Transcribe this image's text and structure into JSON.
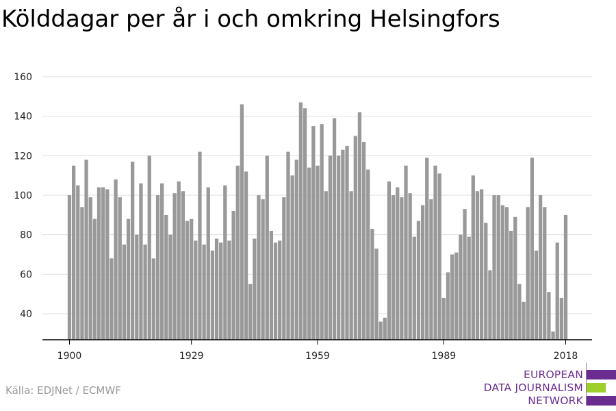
{
  "title": "Kölddagar per år i och omkring Helsingfors",
  "source": "Källa: EDJNet / ECMWF",
  "logo": {
    "lines": [
      "EUROPEAN",
      "DATA JOURNALISM",
      "NETWORK"
    ],
    "colors": {
      "text": "#6b2c8f",
      "bar_purple": "#6b2c8f",
      "bar_green": "#9ed02b"
    }
  },
  "chart_data": {
    "type": "bar",
    "title": "Kölddagar per år i och omkring Helsingfors",
    "xlabel": "",
    "ylabel": "",
    "x_start_year": 1900,
    "x_end_year": 2018,
    "xticks": [
      1900,
      1929,
      1959,
      1989,
      2018
    ],
    "yticks": [
      40,
      60,
      80,
      100,
      120,
      140,
      160
    ],
    "ylim": [
      27,
      163
    ],
    "grid": true,
    "bar_color": "#999999",
    "years": [
      1900,
      1901,
      1902,
      1903,
      1904,
      1905,
      1906,
      1907,
      1908,
      1909,
      1910,
      1911,
      1912,
      1913,
      1914,
      1915,
      1916,
      1917,
      1918,
      1919,
      1920,
      1921,
      1922,
      1923,
      1924,
      1925,
      1926,
      1927,
      1928,
      1929,
      1930,
      1931,
      1932,
      1933,
      1934,
      1935,
      1936,
      1937,
      1938,
      1939,
      1940,
      1941,
      1942,
      1943,
      1944,
      1945,
      1946,
      1947,
      1948,
      1949,
      1950,
      1951,
      1952,
      1953,
      1954,
      1955,
      1956,
      1957,
      1958,
      1959,
      1960,
      1961,
      1962,
      1963,
      1964,
      1965,
      1966,
      1967,
      1968,
      1969,
      1970,
      1971,
      1972,
      1973,
      1974,
      1975,
      1976,
      1977,
      1978,
      1979,
      1980,
      1981,
      1982,
      1983,
      1984,
      1985,
      1986,
      1987,
      1988,
      1989,
      1990,
      1991,
      1992,
      1993,
      1994,
      1995,
      1996,
      1997,
      1998,
      1999,
      2000,
      2001,
      2002,
      2003,
      2004,
      2005,
      2006,
      2007,
      2008,
      2009,
      2010,
      2011,
      2012,
      2013,
      2014,
      2015,
      2016,
      2017,
      2018
    ],
    "values": [
      100,
      115,
      105,
      94,
      118,
      99,
      88,
      104,
      104,
      103,
      68,
      108,
      99,
      75,
      88,
      117,
      80,
      106,
      75,
      120,
      68,
      100,
      106,
      90,
      80,
      101,
      107,
      102,
      87,
      88,
      77,
      122,
      75,
      104,
      72,
      78,
      76,
      105,
      77,
      92,
      115,
      146,
      112,
      55,
      78,
      100,
      98,
      120,
      82,
      76,
      77,
      99,
      122,
      110,
      118,
      147,
      144,
      114,
      135,
      115,
      136,
      102,
      120,
      139,
      120,
      123,
      125,
      102,
      130,
      142,
      127,
      113,
      83,
      73,
      36,
      38,
      107,
      100,
      104,
      99,
      115,
      101,
      79,
      87,
      95,
      119,
      98,
      115,
      111,
      48,
      61,
      70,
      71,
      80,
      93,
      79,
      110,
      102,
      103,
      86,
      62,
      100,
      100,
      95,
      94,
      82,
      89,
      55,
      46,
      94,
      119,
      72,
      100,
      94,
      51,
      31,
      76,
      48,
      90
    ]
  }
}
